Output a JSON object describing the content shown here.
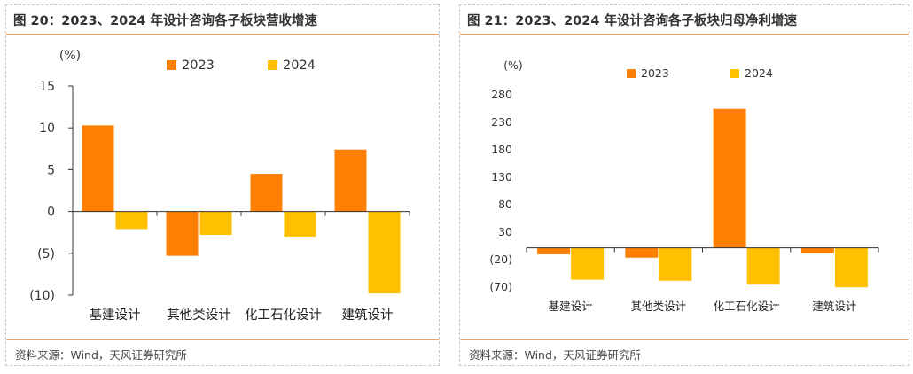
{
  "charts": [
    {
      "title": "图 20：2023、2024 年设计咨询各子板块营收增速",
      "source": "资料来源：Wind，天风证券研究所",
      "unit": "(%)",
      "chart_data": {
        "type": "bar",
        "categories": [
          "基建设计",
          "其他类设计",
          "化工石化设计",
          "建筑设计"
        ],
        "series": [
          {
            "name": "2023",
            "color": "#FF8000",
            "values": [
              10.3,
              -5.3,
              4.5,
              7.4
            ]
          },
          {
            "name": "2024",
            "color": "#FFC000",
            "values": [
              -2.1,
              -2.8,
              -3.0,
              -9.8
            ]
          }
        ],
        "ylim": [
          -10,
          15
        ],
        "yticks": [
          15,
          10,
          5,
          0,
          -5,
          -10
        ],
        "ytick_labels": [
          "15",
          "10",
          "5",
          "0",
          "(5)",
          "(10)"
        ],
        "legend": "top"
      }
    },
    {
      "title": "图 21：2023、2024 年设计咨询各子板块归母净利增速",
      "source": "资料来源：Wind，天风证券研究所",
      "unit": "(%)",
      "chart_data": {
        "type": "bar",
        "categories": [
          "基建设计",
          "其他类设计",
          "化工石化设计",
          "建筑设计"
        ],
        "series": [
          {
            "name": "2023",
            "color": "#FF8000",
            "values": [
              -12,
              -18,
              253,
              -10
            ]
          },
          {
            "name": "2024",
            "color": "#FFC000",
            "values": [
              -58,
              -60,
              -67,
              -72
            ]
          }
        ],
        "ylim": [
          -70,
          280
        ],
        "yticks": [
          280,
          230,
          180,
          130,
          80,
          30,
          -20,
          -70
        ],
        "ytick_labels": [
          "280",
          "230",
          "180",
          "130",
          "80",
          "30",
          "(20)",
          "(70)"
        ],
        "legend": "top"
      }
    }
  ]
}
